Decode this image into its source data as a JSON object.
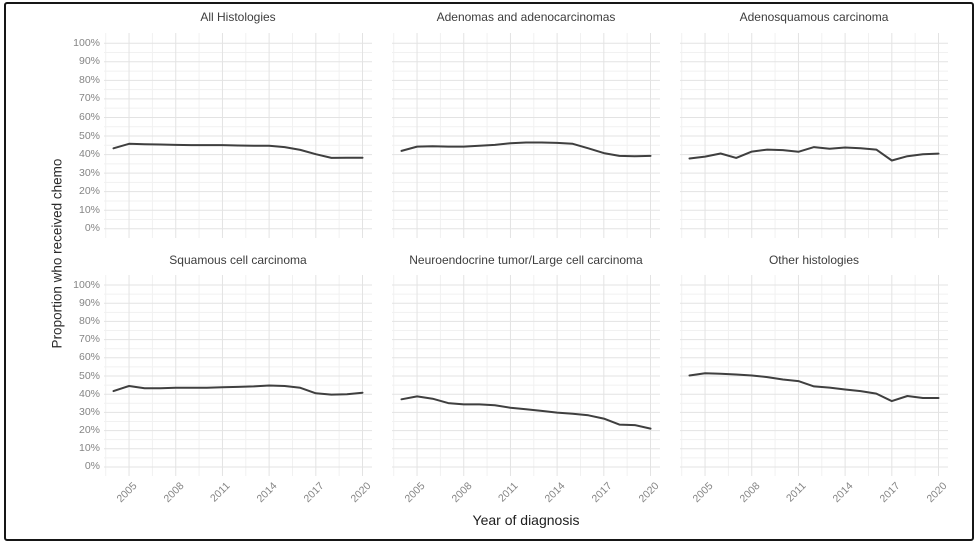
{
  "figure": {
    "y_axis_title": "Proportion who received chemo",
    "x_axis_title": "Year of diagnosis",
    "y_tick_labels": [
      "100%",
      "90%",
      "80%",
      "70%",
      "60%",
      "50%",
      "40%",
      "30%",
      "20%",
      "10%",
      "0%"
    ],
    "x_tick_labels": [
      "2005",
      "2008",
      "2011",
      "2014",
      "2017",
      "2020"
    ],
    "frame_color": "#161616",
    "background_color": "#ffffff"
  },
  "chart_data": {
    "type": "line",
    "x_label": "Year of diagnosis",
    "y_label": "Proportion who received chemo",
    "x": [
      2004,
      2005,
      2006,
      2007,
      2008,
      2009,
      2010,
      2011,
      2012,
      2013,
      2014,
      2015,
      2016,
      2017,
      2018,
      2019,
      2020
    ],
    "x_ticks": [
      2005,
      2008,
      2011,
      2014,
      2017,
      2020
    ],
    "ylim": [
      0,
      100
    ],
    "y_major_ticks_pct": [
      0,
      10,
      20,
      30,
      40,
      50,
      60,
      70,
      80,
      90,
      100
    ],
    "y_minor_ticks_pct": [
      5,
      15,
      25,
      35,
      45,
      55,
      65,
      75,
      85,
      95
    ],
    "grid": "on",
    "legend": "none",
    "line_color": "#3f3f3f",
    "line_width": 2,
    "grid_major_color": "#e3e3e3",
    "grid_minor_color": "#f1f1f1",
    "panels": [
      {
        "title": "All Histologies",
        "values": [
          43.4,
          45.8,
          45.6,
          45.4,
          45.2,
          45.1,
          45.1,
          45.1,
          44.9,
          44.7,
          44.7,
          44.0,
          42.5,
          40.2,
          38.2,
          38.3,
          38.3
        ]
      },
      {
        "title": "Adenomas and adenocarcinomas",
        "values": [
          42.0,
          44.3,
          44.5,
          44.3,
          44.3,
          44.7,
          45.2,
          46.1,
          46.5,
          46.5,
          46.3,
          45.8,
          43.4,
          40.8,
          39.3,
          39.1,
          39.3
        ]
      },
      {
        "title": "Adenosquamous carcinoma",
        "values": [
          37.9,
          38.9,
          40.6,
          38.2,
          41.6,
          42.7,
          42.4,
          41.5,
          44.0,
          43.1,
          43.8,
          43.4,
          42.7,
          36.8,
          39.1,
          40.2,
          40.5
        ]
      },
      {
        "title": "Squamous cell carcinoma",
        "values": [
          41.7,
          44.5,
          43.3,
          43.3,
          43.5,
          43.5,
          43.5,
          43.8,
          44.0,
          44.3,
          44.8,
          44.5,
          43.5,
          40.5,
          39.8,
          40.0,
          40.8
        ]
      },
      {
        "title": "Neuroendocrine tumor/Large cell carcinoma",
        "values": [
          37.2,
          38.8,
          37.5,
          35.1,
          34.4,
          34.4,
          33.9,
          32.6,
          31.7,
          30.8,
          29.9,
          29.3,
          28.4,
          26.6,
          23.3,
          23.0,
          21.1
        ]
      },
      {
        "title": "Other histologies",
        "values": [
          50.3,
          51.5,
          51.2,
          50.8,
          50.3,
          49.4,
          48.1,
          47.2,
          44.3,
          43.6,
          42.6,
          41.7,
          40.3,
          36.2,
          39.0,
          37.9,
          37.9
        ]
      }
    ]
  }
}
